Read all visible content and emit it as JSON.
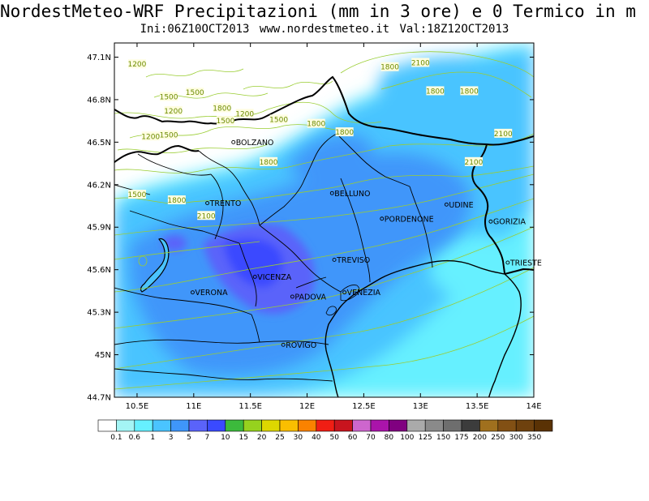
{
  "header": {
    "title": "NordestMeteo-WRF Precipitazioni (mm in 3 ore) e 0 Termico in m",
    "subtitle": "Ini:06Z10OCT2013   www.nordestmeteo.it   Val:18Z12OCT2013"
  },
  "axes": {
    "x_ticks": [
      "10.5E",
      "11E",
      "11.5E",
      "12E",
      "12.5E",
      "13E",
      "13.5E",
      "14E"
    ],
    "y_ticks": [
      "47.1N",
      "46.8N",
      "46.5N",
      "46.2N",
      "45.9N",
      "45.6N",
      "45.3N",
      "45N",
      "44.7N"
    ]
  },
  "cities": [
    {
      "name": "BOLZANO",
      "lon": 11.35,
      "lat": 46.5
    },
    {
      "name": "TRENTO",
      "lon": 11.12,
      "lat": 46.07
    },
    {
      "name": "BELLUNO",
      "lon": 12.22,
      "lat": 46.14
    },
    {
      "name": "UDINE",
      "lon": 13.23,
      "lat": 46.06
    },
    {
      "name": "PORDENONE",
      "lon": 12.66,
      "lat": 45.96
    },
    {
      "name": "GORIZIA",
      "lon": 13.62,
      "lat": 45.94
    },
    {
      "name": "TREVISO",
      "lon": 12.24,
      "lat": 45.67
    },
    {
      "name": "TRIESTE",
      "lon": 13.77,
      "lat": 45.65
    },
    {
      "name": "VICENZA",
      "lon": 11.54,
      "lat": 45.55
    },
    {
      "name": "PADOVA",
      "lon": 11.87,
      "lat": 45.41
    },
    {
      "name": "VENEZIA",
      "lon": 12.33,
      "lat": 45.44
    },
    {
      "name": "VERONA",
      "lon": 10.99,
      "lat": 45.44
    },
    {
      "name": "ROVIGO",
      "lon": 11.79,
      "lat": 45.07
    }
  ],
  "contour_labels": [
    {
      "text": "1200",
      "lon": 10.5,
      "lat": 47.05
    },
    {
      "text": "1800",
      "lon": 12.73,
      "lat": 47.03
    },
    {
      "text": "2100",
      "lon": 13.0,
      "lat": 47.06
    },
    {
      "text": "1500",
      "lon": 10.78,
      "lat": 46.82
    },
    {
      "text": "1500",
      "lon": 11.01,
      "lat": 46.85
    },
    {
      "text": "1200",
      "lon": 10.82,
      "lat": 46.72
    },
    {
      "text": "1800",
      "lon": 11.25,
      "lat": 46.74
    },
    {
      "text": "1500",
      "lon": 11.28,
      "lat": 46.65
    },
    {
      "text": "1200",
      "lon": 11.45,
      "lat": 46.7
    },
    {
      "text": "1500",
      "lon": 11.75,
      "lat": 46.66
    },
    {
      "text": "1800",
      "lon": 12.08,
      "lat": 46.63
    },
    {
      "text": "1800",
      "lon": 12.33,
      "lat": 46.57
    },
    {
      "text": "1800",
      "lon": 13.13,
      "lat": 46.86
    },
    {
      "text": "1800",
      "lon": 13.43,
      "lat": 46.86
    },
    {
      "text": "2100",
      "lon": 13.73,
      "lat": 46.56
    },
    {
      "text": "2100",
      "lon": 13.47,
      "lat": 46.36
    },
    {
      "text": "1200",
      "lon": 10.62,
      "lat": 46.54
    },
    {
      "text": "1500",
      "lon": 10.78,
      "lat": 46.55
    },
    {
      "text": "1800",
      "lon": 11.66,
      "lat": 46.36
    },
    {
      "text": "1800",
      "lon": 10.85,
      "lat": 46.09
    },
    {
      "text": "1500",
      "lon": 10.5,
      "lat": 46.13
    },
    {
      "text": "2100",
      "lon": 11.11,
      "lat": 45.98
    }
  ],
  "legend": {
    "colors": [
      "#ffffff",
      "#a4f5f5",
      "#66f0ff",
      "#4ac4ff",
      "#3f96fa",
      "#5a63fa",
      "#3a4aff",
      "#3cba3c",
      "#96d21e",
      "#ddd700",
      "#fabe00",
      "#fa8200",
      "#f01e14",
      "#c8141e",
      "#cd66cd",
      "#aa14aa",
      "#800080",
      "#aaaaaa",
      "#8a8a8a",
      "#6e6e6e",
      "#3c3c3c",
      "#a0701e",
      "#825014",
      "#6e410e",
      "#5a3205"
    ],
    "labels": [
      "0.1",
      "0.6",
      "1",
      "3",
      "5",
      "7",
      "10",
      "15",
      "20",
      "25",
      "30",
      "40",
      "50",
      "60",
      "70",
      "80",
      "100",
      "125",
      "150",
      "175",
      "200",
      "250",
      "300",
      "350"
    ]
  }
}
